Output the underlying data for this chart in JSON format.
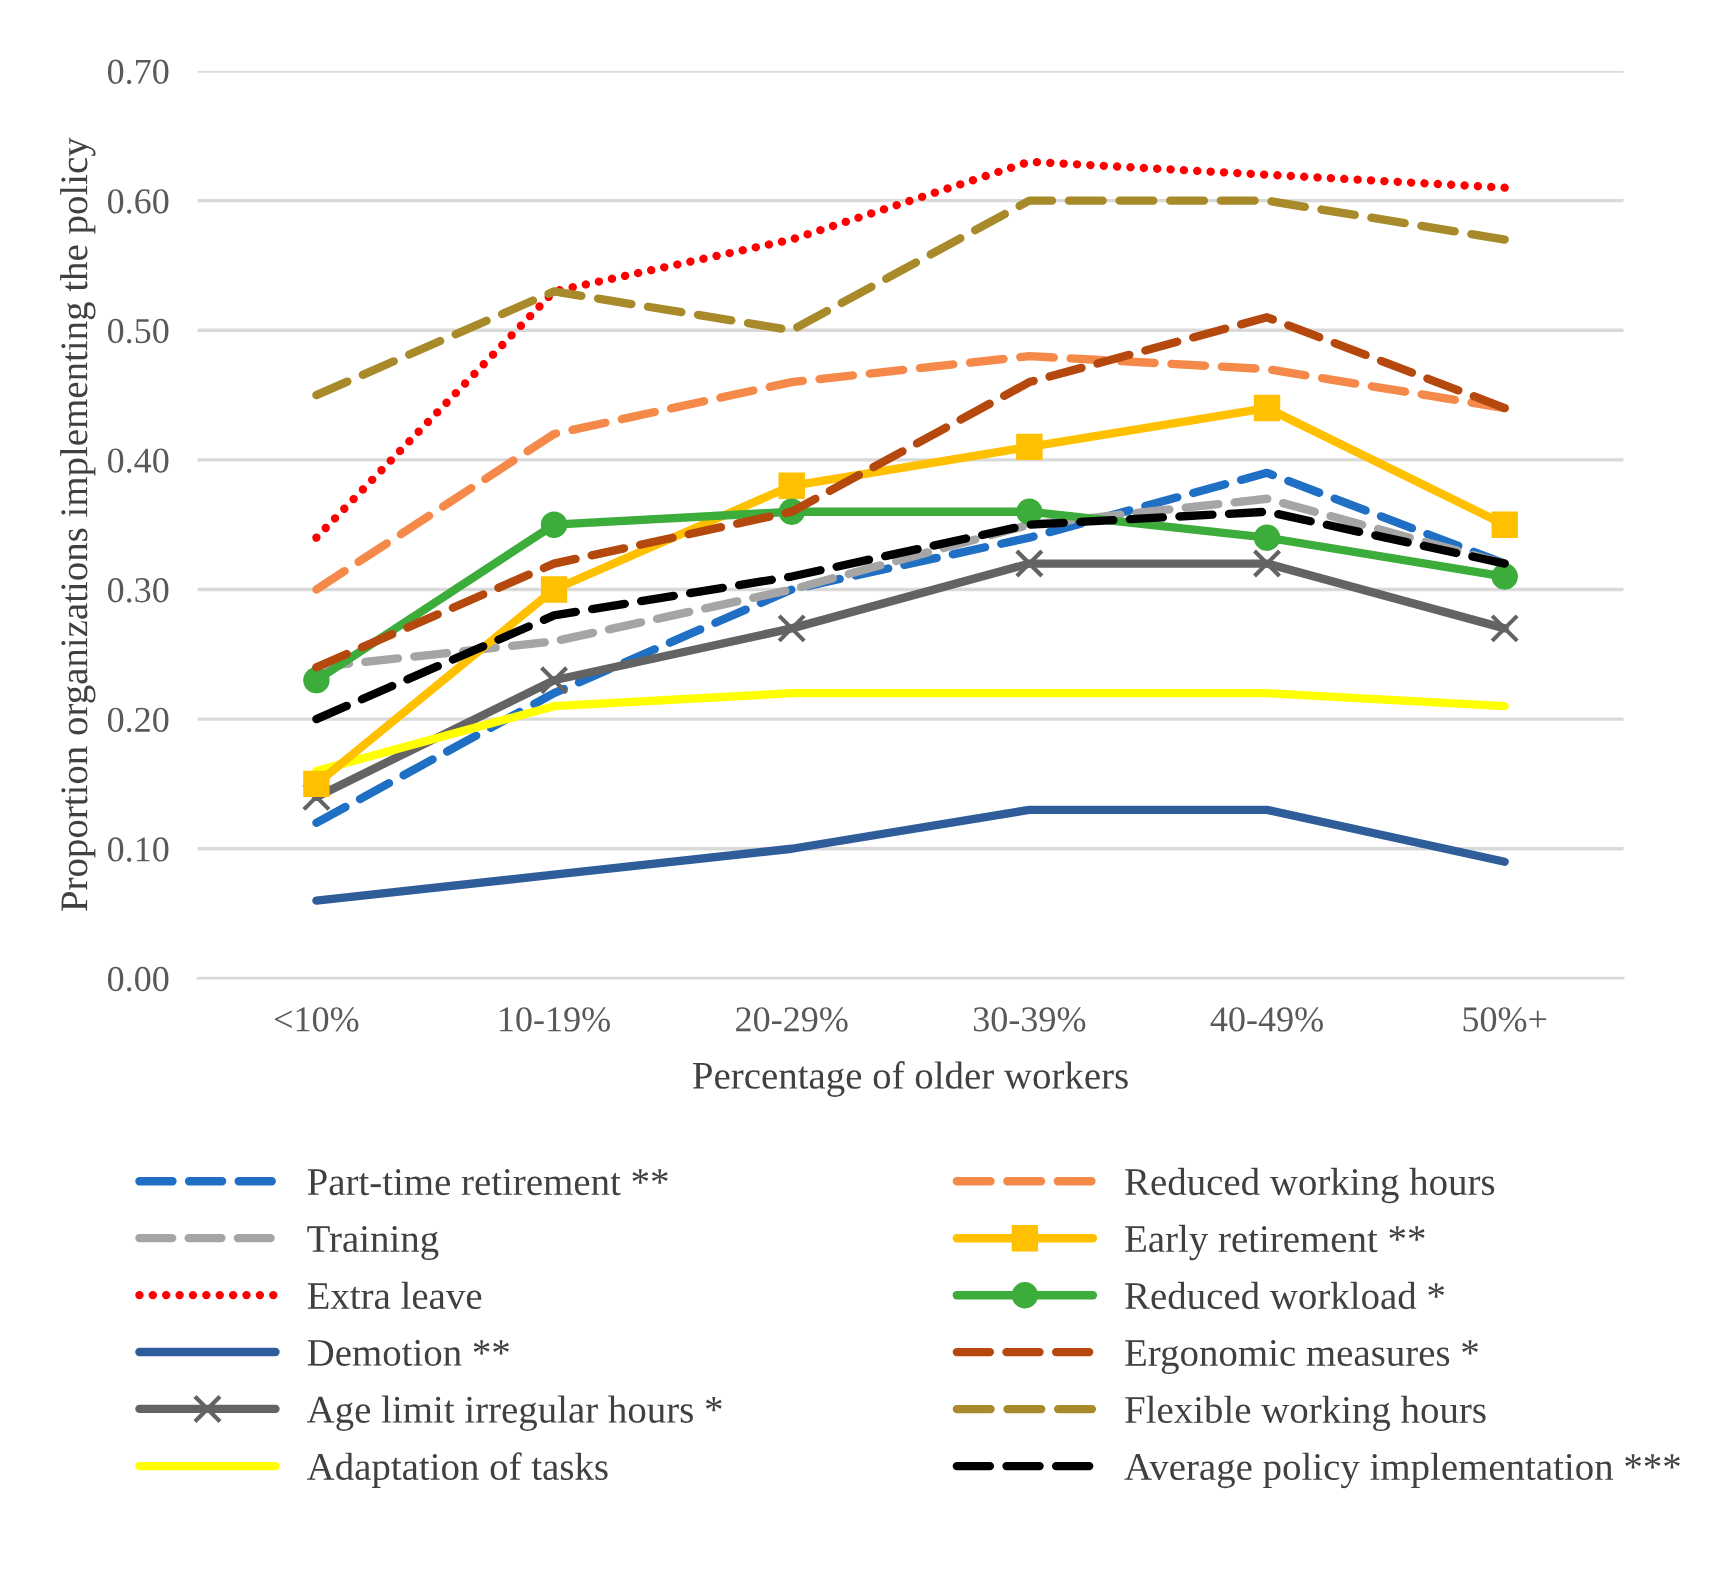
{
  "chart_data": {
    "type": "line",
    "xlabel": "Percentage of older workers",
    "ylabel": "Proportion organizations implementing the policy",
    "categories": [
      "<10%",
      "10-19%",
      "20-29%",
      "30-39%",
      "40-49%",
      "50%+"
    ],
    "ylim": [
      0,
      0.7
    ],
    "yticks": [
      {
        "value": 0,
        "label": "0.00"
      },
      {
        "value": 0.1,
        "label": "0.10"
      },
      {
        "value": 0.2,
        "label": "0.20"
      },
      {
        "value": 0.3,
        "label": "0.30"
      },
      {
        "value": 0.4,
        "label": "0.40"
      },
      {
        "value": 0.5,
        "label": "0.50"
      },
      {
        "value": 0.6,
        "label": "0.60"
      },
      {
        "value": 0.7,
        "label": "0.70"
      }
    ],
    "grid": "y",
    "legend": "bottom",
    "series": [
      {
        "name": "Part-time retirement **",
        "color": "#1f6fc5",
        "line_style": "dashed",
        "values": [
          0.12,
          0.22,
          0.3,
          0.34,
          0.39,
          0.32
        ]
      },
      {
        "name": "Training",
        "color": "#a5a5a5",
        "line_style": "dashed",
        "values": [
          0.24,
          0.26,
          0.3,
          0.35,
          0.37,
          0.32
        ]
      },
      {
        "name": "Extra leave",
        "color": "#ff0000",
        "line_style": "dotted",
        "values": [
          0.34,
          0.53,
          0.57,
          0.63,
          0.62,
          0.61
        ]
      },
      {
        "name": "Demotion **",
        "color": "#2e5d9a",
        "line_style": "solid",
        "values": [
          0.06,
          0.08,
          0.1,
          0.13,
          0.13,
          0.09
        ]
      },
      {
        "name": "Age limit irregular hours *",
        "color": "#636363",
        "line_style": "solid",
        "marker": "cross",
        "values": [
          0.14,
          0.23,
          0.27,
          0.32,
          0.32,
          0.27
        ]
      },
      {
        "name": "Adaptation of tasks",
        "color": "#ffff00",
        "line_style": "solid",
        "values": [
          0.16,
          0.21,
          0.22,
          0.22,
          0.22,
          0.21
        ]
      },
      {
        "name": "Reduced working hours",
        "color": "#f4894a",
        "line_style": "dashed",
        "values": [
          0.3,
          0.42,
          0.46,
          0.48,
          0.47,
          0.44
        ]
      },
      {
        "name": "Early retirement **",
        "color": "#ffc000",
        "line_style": "solid",
        "marker": "square",
        "values": [
          0.15,
          0.3,
          0.38,
          0.41,
          0.44,
          0.35
        ]
      },
      {
        "name": "Reduced workload *",
        "color": "#3cac3a",
        "line_style": "solid",
        "marker": "circle",
        "values": [
          0.23,
          0.35,
          0.36,
          0.36,
          0.34,
          0.31
        ]
      },
      {
        "name": "Ergonomic measures *",
        "color": "#b4480d",
        "line_style": "dashed",
        "values": [
          0.24,
          0.32,
          0.36,
          0.46,
          0.51,
          0.44
        ]
      },
      {
        "name": "Flexible working hours",
        "color": "#a88a2a",
        "line_style": "dashed",
        "values": [
          0.45,
          0.53,
          0.5,
          0.6,
          0.6,
          0.57
        ]
      },
      {
        "name": "Average policy implementation ***",
        "color": "#000000",
        "line_style": "dashed",
        "values": [
          0.2,
          0.28,
          0.31,
          0.35,
          0.36,
          0.32
        ]
      }
    ]
  }
}
